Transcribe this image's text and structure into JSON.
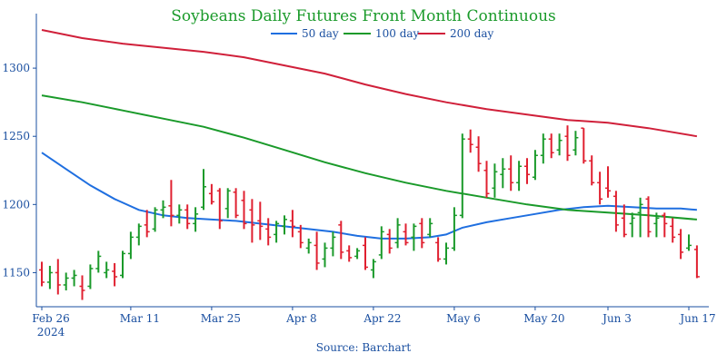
{
  "chart_data": {
    "type": "ohlc",
    "title": "Soybeans Daily Futures Front Month Continuous",
    "source": "Source: Barchart",
    "ylim": [
      1125,
      1340
    ],
    "yticks": [
      1150,
      1200,
      1250,
      1300
    ],
    "xticks": [
      {
        "index": 0,
        "label": "Feb 26"
      },
      {
        "index": 11,
        "label": "Mar 11"
      },
      {
        "index": 21,
        "label": "Mar 25"
      },
      {
        "index": 31,
        "label": "Apr 8"
      },
      {
        "index": 41,
        "label": "Apr 22"
      },
      {
        "index": 51,
        "label": "May 6"
      },
      {
        "index": 61,
        "label": "May 20"
      },
      {
        "index": 70,
        "label": "Jun 3"
      },
      {
        "index": 80,
        "label": "Jun 17"
      }
    ],
    "year_label": "2024",
    "colors": {
      "up": "#1a9a2a",
      "down": "#e02030",
      "ma50": "#1f6fe0",
      "ma100": "#1a9a2a",
      "ma200": "#d0203a",
      "axis": "#1a4fa0"
    },
    "series": [
      {
        "name": "50 day",
        "color": "#1f6fe0",
        "points": [
          [
            0,
            1238
          ],
          [
            3,
            1226
          ],
          [
            6,
            1214
          ],
          [
            9,
            1204
          ],
          [
            12,
            1196
          ],
          [
            15,
            1192
          ],
          [
            18,
            1190
          ],
          [
            21,
            1189
          ],
          [
            24,
            1188
          ],
          [
            27,
            1186
          ],
          [
            30,
            1184
          ],
          [
            33,
            1182
          ],
          [
            36,
            1180
          ],
          [
            39,
            1177
          ],
          [
            42,
            1175
          ],
          [
            45,
            1175
          ],
          [
            48,
            1176
          ],
          [
            50,
            1178
          ],
          [
            52,
            1183
          ],
          [
            55,
            1187
          ],
          [
            58,
            1190
          ],
          [
            61,
            1193
          ],
          [
            64,
            1196
          ],
          [
            67,
            1198
          ],
          [
            70,
            1199
          ],
          [
            73,
            1198
          ],
          [
            76,
            1197
          ],
          [
            79,
            1197
          ],
          [
            81,
            1196
          ]
        ]
      },
      {
        "name": "100 day",
        "color": "#1a9a2a",
        "points": [
          [
            0,
            1280
          ],
          [
            5,
            1275
          ],
          [
            10,
            1269
          ],
          [
            15,
            1263
          ],
          [
            20,
            1257
          ],
          [
            25,
            1249
          ],
          [
            30,
            1240
          ],
          [
            35,
            1231
          ],
          [
            40,
            1223
          ],
          [
            45,
            1216
          ],
          [
            50,
            1210
          ],
          [
            55,
            1205
          ],
          [
            60,
            1200
          ],
          [
            65,
            1196
          ],
          [
            70,
            1194
          ],
          [
            75,
            1192
          ],
          [
            81,
            1189
          ]
        ]
      },
      {
        "name": "200 day",
        "color": "#d0203a",
        "points": [
          [
            0,
            1328
          ],
          [
            5,
            1322
          ],
          [
            10,
            1318
          ],
          [
            15,
            1315
          ],
          [
            20,
            1312
          ],
          [
            25,
            1308
          ],
          [
            30,
            1302
          ],
          [
            35,
            1296
          ],
          [
            40,
            1288
          ],
          [
            45,
            1281
          ],
          [
            50,
            1275
          ],
          [
            55,
            1270
          ],
          [
            60,
            1266
          ],
          [
            65,
            1262
          ],
          [
            70,
            1260
          ],
          [
            75,
            1256
          ],
          [
            81,
            1250
          ]
        ]
      }
    ],
    "bars": [
      [
        1152,
        1158,
        1140,
        1143
      ],
      [
        1143,
        1155,
        1138,
        1150
      ],
      [
        1150,
        1160,
        1134,
        1141
      ],
      [
        1141,
        1150,
        1137,
        1146
      ],
      [
        1146,
        1152,
        1140,
        1148
      ],
      [
        1140,
        1148,
        1130,
        1137
      ],
      [
        1140,
        1156,
        1138,
        1153
      ],
      [
        1153,
        1166,
        1150,
        1162
      ],
      [
        1150,
        1158,
        1146,
        1152
      ],
      [
        1151,
        1157,
        1140,
        1147
      ],
      [
        1148,
        1166,
        1146,
        1164
      ],
      [
        1164,
        1180,
        1160,
        1176
      ],
      [
        1176,
        1186,
        1170,
        1184
      ],
      [
        1185,
        1196,
        1176,
        1180
      ],
      [
        1182,
        1198,
        1180,
        1196
      ],
      [
        1196,
        1203,
        1190,
        1198
      ],
      [
        1199,
        1218,
        1184,
        1192
      ],
      [
        1192,
        1200,
        1186,
        1196
      ],
      [
        1196,
        1200,
        1182,
        1186
      ],
      [
        1186,
        1198,
        1180,
        1193
      ],
      [
        1198,
        1226,
        1196,
        1213
      ],
      [
        1208,
        1215,
        1200,
        1202
      ],
      [
        1210,
        1212,
        1182,
        1188
      ],
      [
        1197,
        1212,
        1190,
        1210
      ],
      [
        1209,
        1212,
        1190,
        1192
      ],
      [
        1203,
        1210,
        1182,
        1186
      ],
      [
        1196,
        1204,
        1172,
        1185
      ],
      [
        1188,
        1202,
        1174,
        1184
      ],
      [
        1182,
        1190,
        1170,
        1176
      ],
      [
        1178,
        1188,
        1172,
        1186
      ],
      [
        1184,
        1192,
        1178,
        1189
      ],
      [
        1188,
        1196,
        1176,
        1184
      ],
      [
        1180,
        1185,
        1168,
        1172
      ],
      [
        1168,
        1175,
        1164,
        1172
      ],
      [
        1170,
        1180,
        1152,
        1157
      ],
      [
        1160,
        1172,
        1154,
        1168
      ],
      [
        1168,
        1180,
        1162,
        1176
      ],
      [
        1185,
        1188,
        1160,
        1165
      ],
      [
        1166,
        1170,
        1158,
        1161
      ],
      [
        1162,
        1168,
        1160,
        1166
      ],
      [
        1170,
        1176,
        1152,
        1154
      ],
      [
        1152,
        1160,
        1146,
        1158
      ],
      [
        1163,
        1184,
        1160,
        1180
      ],
      [
        1178,
        1182,
        1164,
        1168
      ],
      [
        1172,
        1190,
        1168,
        1185
      ],
      [
        1180,
        1186,
        1170,
        1172
      ],
      [
        1176,
        1186,
        1166,
        1184
      ],
      [
        1186,
        1190,
        1168,
        1172
      ],
      [
        1178,
        1190,
        1176,
        1186
      ],
      [
        1172,
        1176,
        1158,
        1160
      ],
      [
        1160,
        1172,
        1156,
        1168
      ],
      [
        1168,
        1198,
        1166,
        1192
      ],
      [
        1192,
        1252,
        1190,
        1248
      ],
      [
        1248,
        1255,
        1238,
        1244
      ],
      [
        1242,
        1250,
        1224,
        1230
      ],
      [
        1225,
        1232,
        1205,
        1208
      ],
      [
        1212,
        1230,
        1205,
        1224
      ],
      [
        1222,
        1234,
        1212,
        1226
      ],
      [
        1226,
        1236,
        1210,
        1216
      ],
      [
        1216,
        1232,
        1210,
        1228
      ],
      [
        1228,
        1234,
        1215,
        1222
      ],
      [
        1220,
        1240,
        1218,
        1236
      ],
      [
        1236,
        1252,
        1230,
        1248
      ],
      [
        1248,
        1252,
        1234,
        1238
      ],
      [
        1240,
        1252,
        1236,
        1247
      ],
      [
        1250,
        1258,
        1232,
        1236
      ],
      [
        1240,
        1254,
        1236,
        1249
      ],
      [
        1256,
        1256,
        1230,
        1232
      ],
      [
        1232,
        1236,
        1214,
        1216
      ],
      [
        1216,
        1224,
        1200,
        1204
      ],
      [
        1212,
        1228,
        1205,
        1210
      ],
      [
        1206,
        1210,
        1180,
        1185
      ],
      [
        1190,
        1200,
        1176,
        1178
      ],
      [
        1186,
        1194,
        1176,
        1190
      ],
      [
        1194,
        1205,
        1176,
        1200
      ],
      [
        1204,
        1206,
        1176,
        1180
      ],
      [
        1186,
        1194,
        1176,
        1190
      ],
      [
        1192,
        1194,
        1176,
        1186
      ],
      [
        1184,
        1190,
        1172,
        1176
      ],
      [
        1178,
        1182,
        1160,
        1165
      ],
      [
        1168,
        1178,
        1166,
        1170
      ],
      [
        1167,
        1170,
        1146,
        1147
      ]
    ]
  }
}
